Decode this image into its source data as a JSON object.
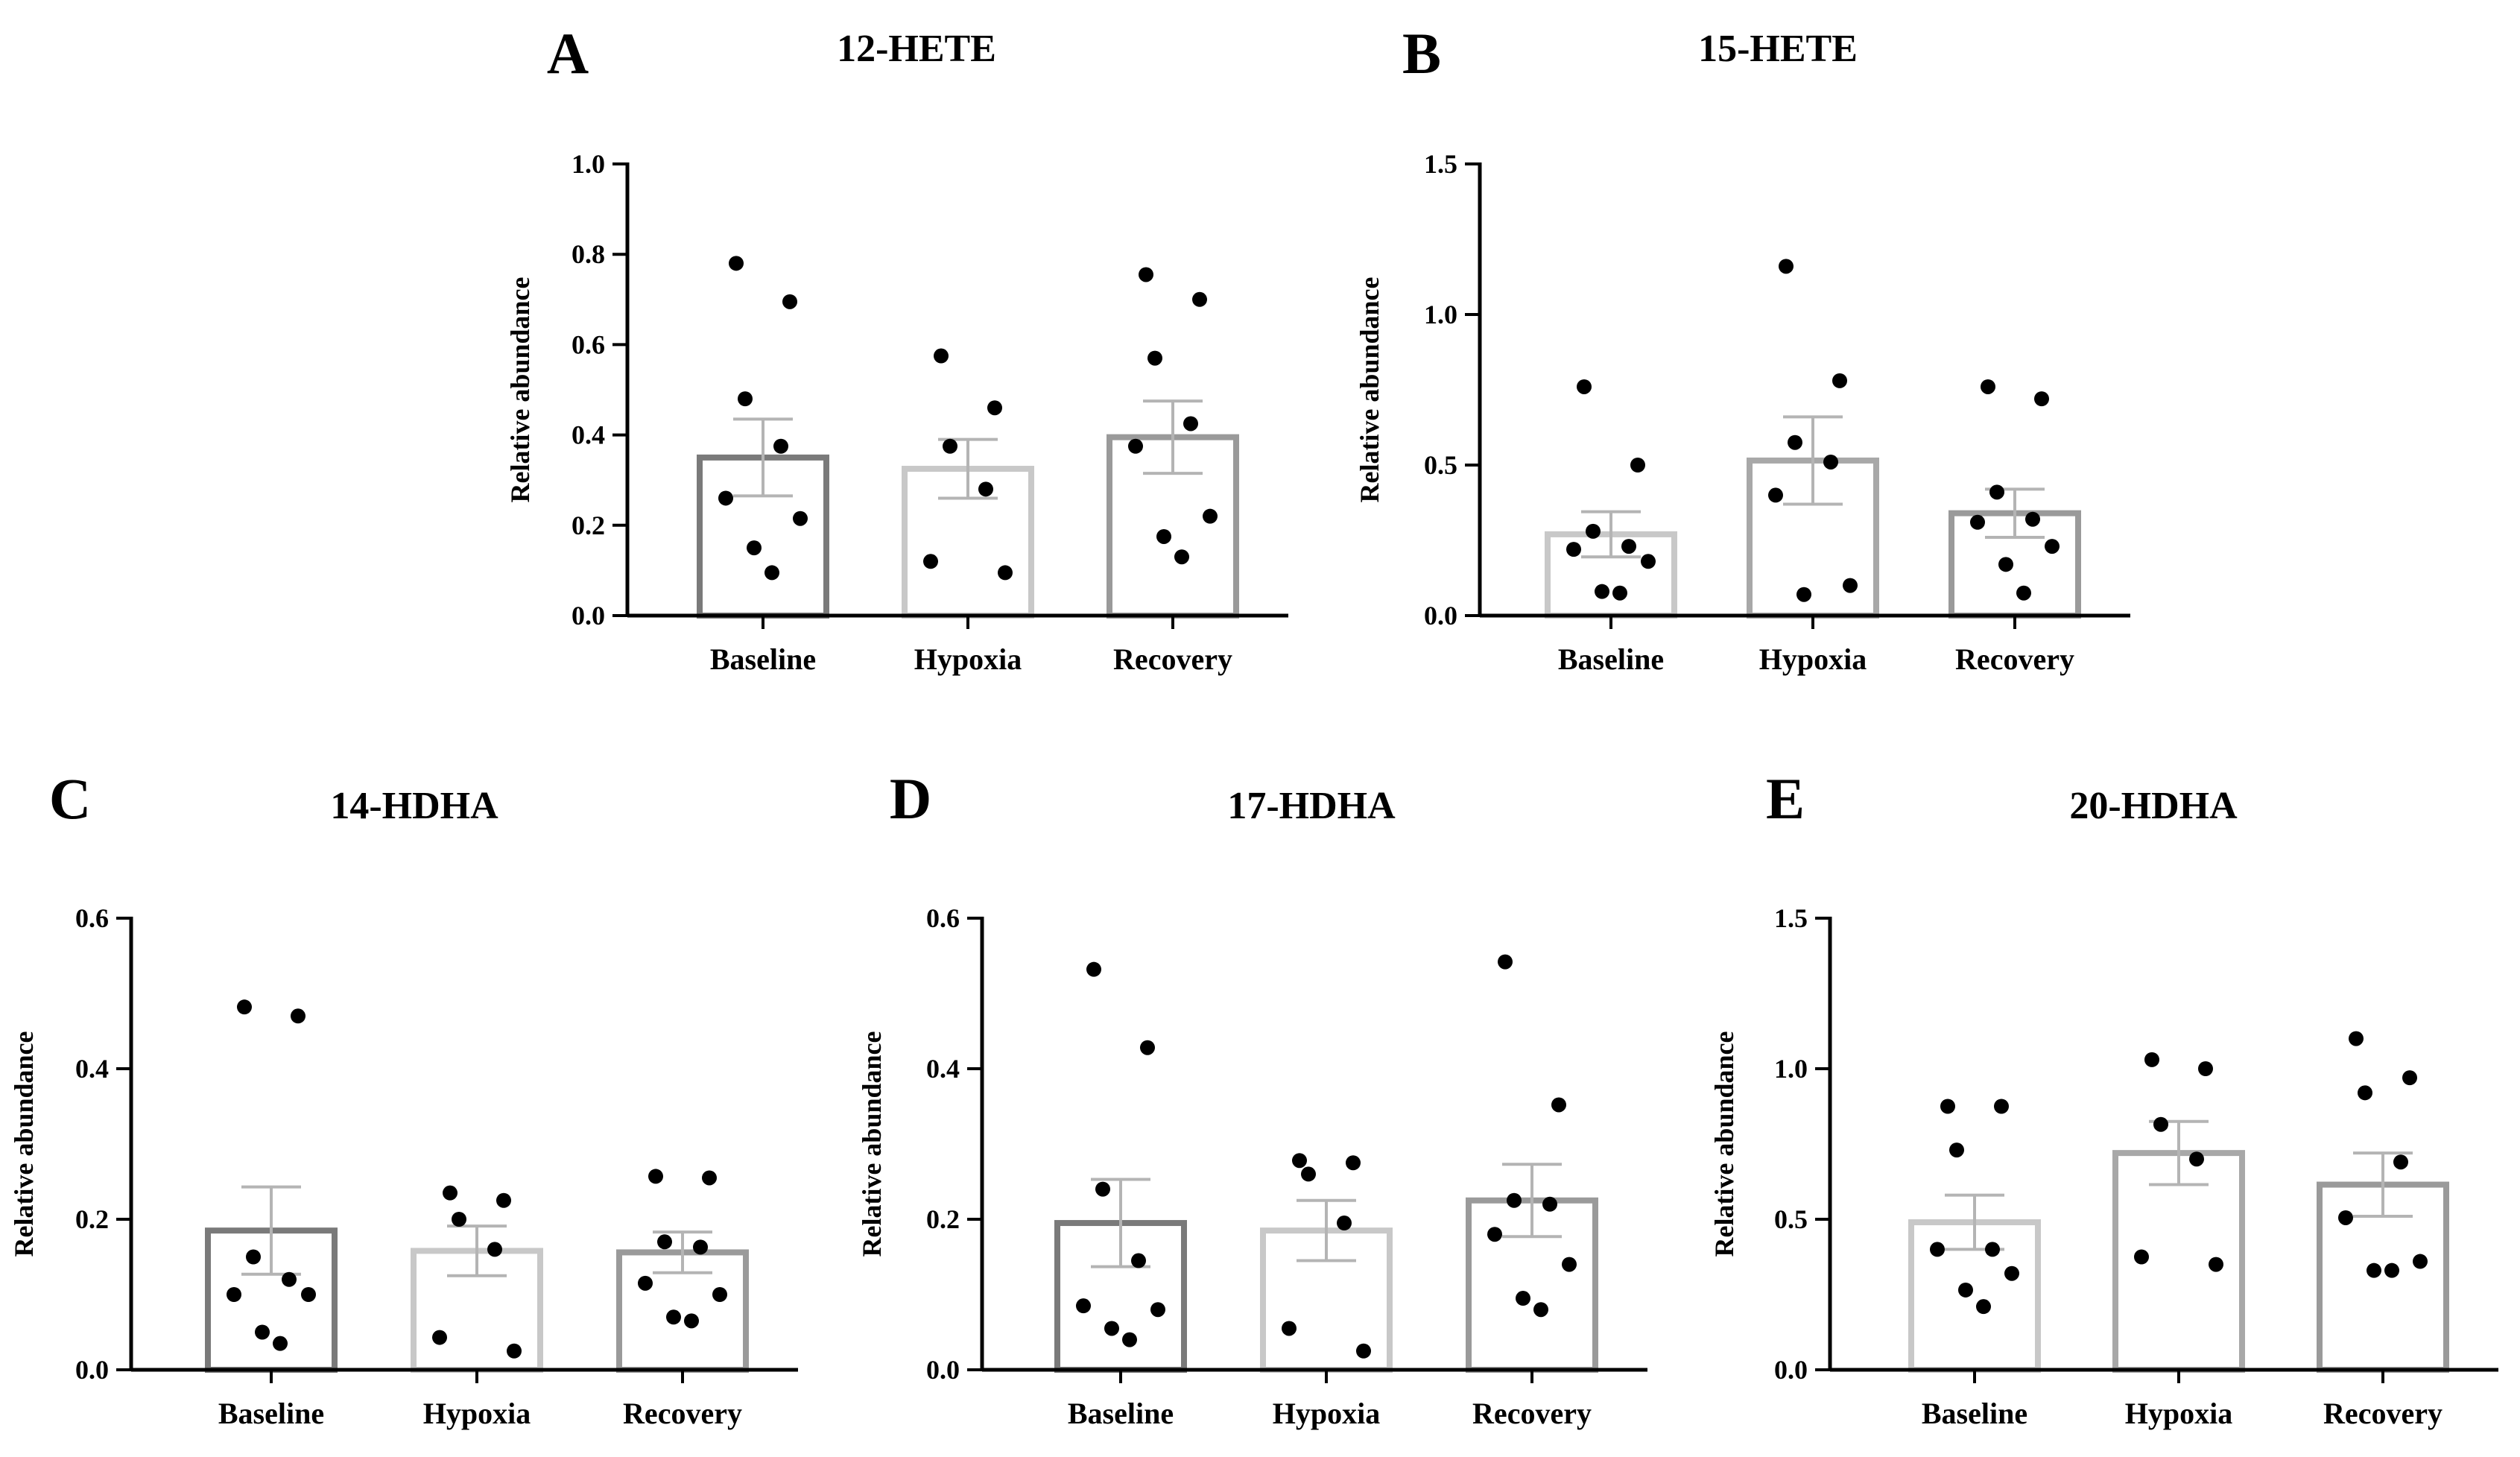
{
  "chart_data": [
    {
      "type": "bar",
      "panel": "A",
      "title": "12-HETE",
      "ylabel": "Relative abundance",
      "xlabel": "",
      "categories": [
        "Baseline",
        "Hypoxia",
        "Recovery"
      ],
      "ylim": [
        0,
        1.0
      ],
      "yticks": [
        "0.0",
        "0.2",
        "0.4",
        "0.6",
        "0.8",
        "1.0"
      ],
      "means": [
        0.35,
        0.325,
        0.395
      ],
      "sem": [
        0.085,
        0.065,
        0.08
      ],
      "points": [
        [
          0.78,
          0.695,
          0.48,
          0.375,
          0.26,
          0.215,
          0.15,
          0.095
        ],
        [
          0.575,
          0.46,
          0.375,
          0.28,
          0.12,
          0.095
        ],
        [
          0.755,
          0.7,
          0.57,
          0.425,
          0.375,
          0.22,
          0.175,
          0.13
        ]
      ],
      "colors": [
        "#7a7a7a",
        "#c8c8c8",
        "#9a9a9a"
      ]
    },
    {
      "type": "bar",
      "panel": "B",
      "title": "15-HETE",
      "ylabel": "Relative abundance",
      "xlabel": "",
      "categories": [
        "Baseline",
        "Hypoxia",
        "Recovery"
      ],
      "ylim": [
        0,
        1.5
      ],
      "yticks": [
        "0.0",
        "0.5",
        "1.0",
        "1.5"
      ],
      "means": [
        0.27,
        0.515,
        0.34
      ],
      "sem": [
        0.075,
        0.145,
        0.08
      ],
      "points": [
        [
          0.76,
          0.5,
          0.28,
          0.23,
          0.22,
          0.18,
          0.08,
          0.075
        ],
        [
          1.16,
          0.78,
          0.575,
          0.51,
          0.4,
          0.1,
          0.07
        ],
        [
          0.76,
          0.72,
          0.41,
          0.32,
          0.31,
          0.23,
          0.17,
          0.075
        ]
      ],
      "colors": [
        "#c8c8c8",
        "#a8a8a8",
        "#9a9a9a"
      ]
    },
    {
      "type": "bar",
      "panel": "C",
      "title": "14-HDHA",
      "ylabel": "Relative abundance",
      "xlabel": "",
      "categories": [
        "Baseline",
        "Hypoxia",
        "Recovery"
      ],
      "ylim": [
        0,
        0.6
      ],
      "yticks": [
        "0.0",
        "0.2",
        "0.4",
        "0.6"
      ],
      "means": [
        0.185,
        0.158,
        0.156
      ],
      "sem": [
        0.058,
        0.033,
        0.027
      ],
      "points": [
        [
          0.482,
          0.47,
          0.15,
          0.12,
          0.1,
          0.1,
          0.05,
          0.035
        ],
        [
          0.235,
          0.225,
          0.2,
          0.16,
          0.043,
          0.025
        ],
        [
          0.257,
          0.255,
          0.17,
          0.163,
          0.115,
          0.1,
          0.07,
          0.065
        ]
      ],
      "colors": [
        "#7a7a7a",
        "#c8c8c8",
        "#9a9a9a"
      ]
    },
    {
      "type": "bar",
      "panel": "D",
      "title": "17-HDHA",
      "ylabel": "Relative abundance",
      "xlabel": "",
      "categories": [
        "Baseline",
        "Hypoxia",
        "Recovery"
      ],
      "ylim": [
        0,
        0.6
      ],
      "yticks": [
        "0.0",
        "0.2",
        "0.4",
        "0.6"
      ],
      "means": [
        0.195,
        0.185,
        0.225
      ],
      "sem": [
        0.058,
        0.04,
        0.048
      ],
      "points": [
        [
          0.532,
          0.428,
          0.24,
          0.145,
          0.085,
          0.08,
          0.055,
          0.04
        ],
        [
          0.278,
          0.275,
          0.26,
          0.195,
          0.055,
          0.025
        ],
        [
          0.542,
          0.352,
          0.225,
          0.22,
          0.18,
          0.14,
          0.095,
          0.08
        ]
      ],
      "colors": [
        "#7a7a7a",
        "#c8c8c8",
        "#9a9a9a"
      ]
    },
    {
      "type": "bar",
      "panel": "E",
      "title": "20-HDHA",
      "ylabel": "Relative abundance",
      "xlabel": "",
      "categories": [
        "Baseline",
        "Hypoxia",
        "Recovery"
      ],
      "ylim": [
        0,
        1.5
      ],
      "yticks": [
        "0.0",
        "0.5",
        "1.0",
        "1.5"
      ],
      "means": [
        0.49,
        0.72,
        0.615
      ],
      "sem": [
        0.09,
        0.105,
        0.105
      ],
      "points": [
        [
          0.875,
          0.875,
          0.73,
          0.4,
          0.4,
          0.32,
          0.265,
          0.21
        ],
        [
          1.03,
          1.0,
          0.815,
          0.7,
          0.375,
          0.35
        ],
        [
          1.1,
          0.97,
          0.92,
          0.69,
          0.505,
          0.36,
          0.33,
          0.33
        ]
      ],
      "colors": [
        "#c8c8c8",
        "#a8a8a8",
        "#9a9a9a"
      ]
    }
  ]
}
